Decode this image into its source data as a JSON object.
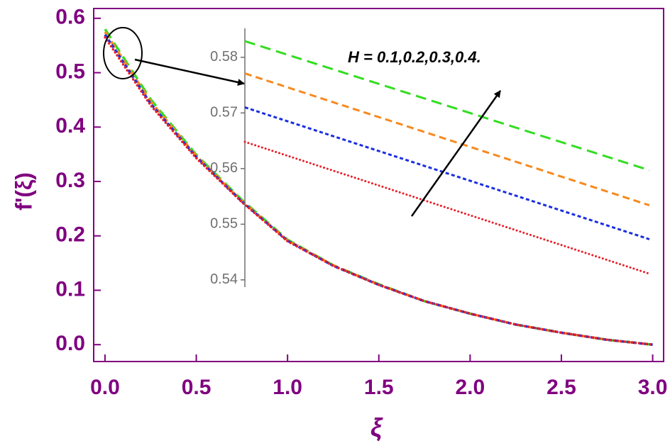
{
  "chart_data": [
    {
      "type": "line",
      "x_label": "ξ",
      "y_label": "f'(ξ)",
      "annotation": "H = 0.1,0.2,0.3,0.4.",
      "x": [
        0,
        0.25,
        0.5,
        0.75,
        1.0,
        1.25,
        1.5,
        1.75,
        2.0,
        2.25,
        2.5,
        2.75,
        3.0
      ],
      "series": [
        {
          "color": "#e8202a",
          "style": "dotted",
          "values": [
            0.565,
            0.44,
            0.343,
            0.262,
            0.19,
            0.145,
            0.11,
            0.08,
            0.057,
            0.037,
            0.022,
            0.009,
            0
          ]
        },
        {
          "color": "#1a2ee0",
          "style": "short-dash",
          "values": [
            0.57,
            0.443,
            0.345,
            0.263,
            0.191,
            0.145,
            0.11,
            0.08,
            0.057,
            0.037,
            0.022,
            0.009,
            0
          ]
        },
        {
          "color": "#f7891f",
          "style": "dash",
          "values": [
            0.575,
            0.447,
            0.347,
            0.264,
            0.192,
            0.146,
            0.11,
            0.08,
            0.057,
            0.037,
            0.022,
            0.009,
            0
          ]
        },
        {
          "color": "#33dd22",
          "style": "long-dash",
          "values": [
            0.58,
            0.451,
            0.349,
            0.266,
            0.193,
            0.146,
            0.111,
            0.08,
            0.057,
            0.037,
            0.022,
            0.009,
            0
          ]
        }
      ],
      "xlim": [
        -0.062,
        3.06
      ],
      "ylim": [
        -0.031,
        0.618
      ],
      "xticks": [
        {
          "value": 0,
          "label": "0.0"
        },
        0.5,
        {
          "value": 1,
          "label": "1.0"
        },
        1.5,
        {
          "value": 2,
          "label": "2.0"
        },
        2.5,
        {
          "value": 3,
          "label": "3.0"
        }
      ],
      "yticks": [
        {
          "value": 0,
          "label": "0.0"
        },
        0.1,
        0.2,
        0.3,
        0.4,
        0.5,
        0.6
      ]
    },
    {
      "type": "line",
      "x": [
        0,
        0.03
      ],
      "series": [
        {
          "color": "#e8202a",
          "style": "dotted",
          "values": [
            0.5648,
            0.5411
          ]
        },
        {
          "color": "#1a2ee0",
          "style": "short-dash",
          "values": [
            0.571,
            0.5473
          ]
        },
        {
          "color": "#f7891f",
          "style": "dash",
          "values": [
            0.5771,
            0.5534
          ]
        },
        {
          "color": "#33dd22",
          "style": "long-dash",
          "values": [
            0.5829,
            0.5597
          ]
        }
      ],
      "xlim": [
        0,
        0.03
      ],
      "ylim": [
        0.5387,
        0.5852
      ],
      "yticks": [
        0.54,
        0.55,
        0.56,
        0.57,
        0.58
      ]
    }
  ]
}
